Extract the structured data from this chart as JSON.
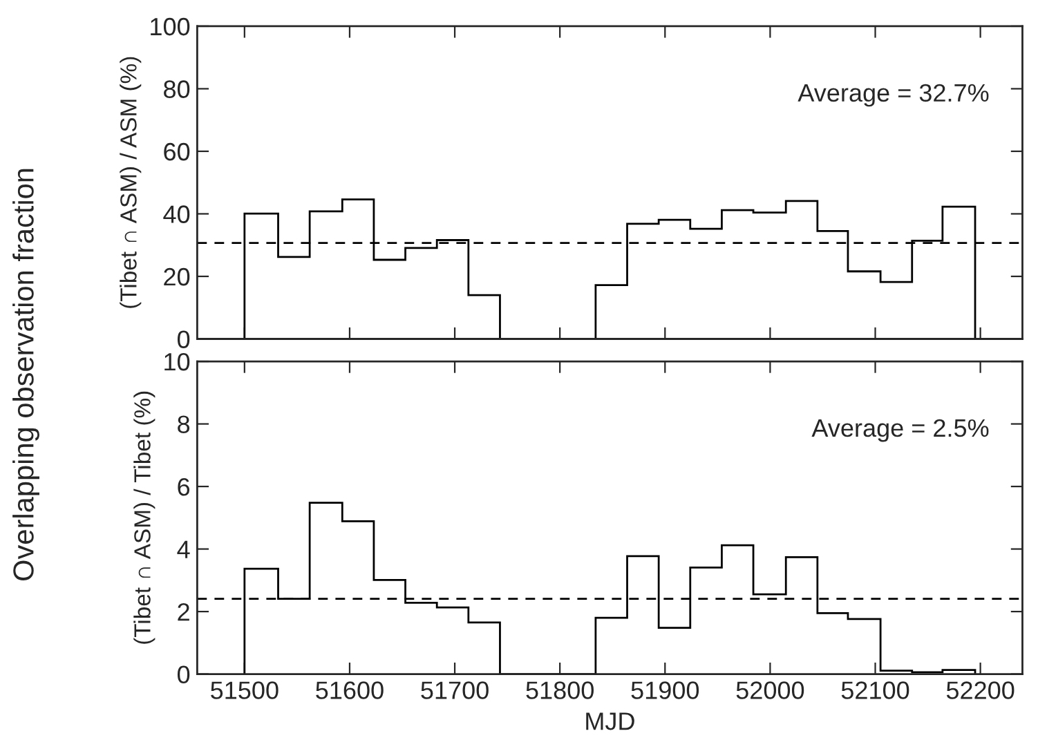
{
  "chart_data": [
    {
      "type": "histogram",
      "ylabel": "(Tibet ∩ ASM) / ASM (%)",
      "annotations": [
        "Average = 32.7%",
        "Overlapping observation fraction"
      ],
      "bins": [
        51500,
        51532,
        51562,
        51593,
        51623,
        51653,
        51683,
        51713,
        51743,
        51773,
        51804,
        51834,
        51864,
        51894,
        51924,
        51954,
        51984,
        52015,
        52045,
        52074,
        52105,
        52135,
        52164,
        52195
      ],
      "values": [
        40.1,
        26.2,
        40.8,
        44.6,
        25.3,
        29.1,
        31.6,
        14.0,
        0,
        0,
        0,
        17.2,
        36.8,
        38.1,
        35.2,
        41.2,
        40.4,
        44.1,
        34.5,
        21.6,
        18.2,
        31.4,
        42.3
      ],
      "color": "#000000",
      "xlim": [
        51455,
        52240
      ],
      "xticks": [
        51500,
        51600,
        51700,
        51800,
        51900,
        52000,
        52100,
        52200
      ],
      "ylim": [
        0,
        100
      ],
      "yticks": [
        0,
        20,
        40,
        60,
        80,
        100
      ],
      "ref_lines": [
        {
          "axis": "y",
          "value": 30.7,
          "line_style": "dashed",
          "color": "#000000"
        }
      ],
      "tick_labels": "y",
      "grid": false
    },
    {
      "type": "histogram",
      "ylabel": "(Tibet ∩ ASM) / Tibet (%)",
      "xlabel": "MJD",
      "annotations": [
        "Average = 2.5%"
      ],
      "bins": [
        51500,
        51532,
        51562,
        51593,
        51623,
        51653,
        51683,
        51713,
        51743,
        51773,
        51804,
        51834,
        51864,
        51894,
        51924,
        51954,
        51984,
        52015,
        52045,
        52074,
        52105,
        52135,
        52164,
        52195
      ],
      "values": [
        3.37,
        2.41,
        5.48,
        4.89,
        3.01,
        2.28,
        2.13,
        1.65,
        0,
        0,
        0,
        1.8,
        3.77,
        1.48,
        3.41,
        4.12,
        2.55,
        3.74,
        1.95,
        1.76,
        0.11,
        0.06,
        0.13
      ],
      "color": "#000000",
      "xlim": [
        51455,
        52240
      ],
      "xticks": [
        51500,
        51600,
        51700,
        51800,
        51900,
        52000,
        52100,
        52200
      ],
      "ylim": [
        0,
        10
      ],
      "yticks": [
        0,
        2,
        4,
        6,
        8,
        10
      ],
      "ref_lines": [
        {
          "axis": "y",
          "value": 2.41,
          "line_style": "dashed",
          "color": "#000000"
        }
      ],
      "grid": false
    }
  ]
}
